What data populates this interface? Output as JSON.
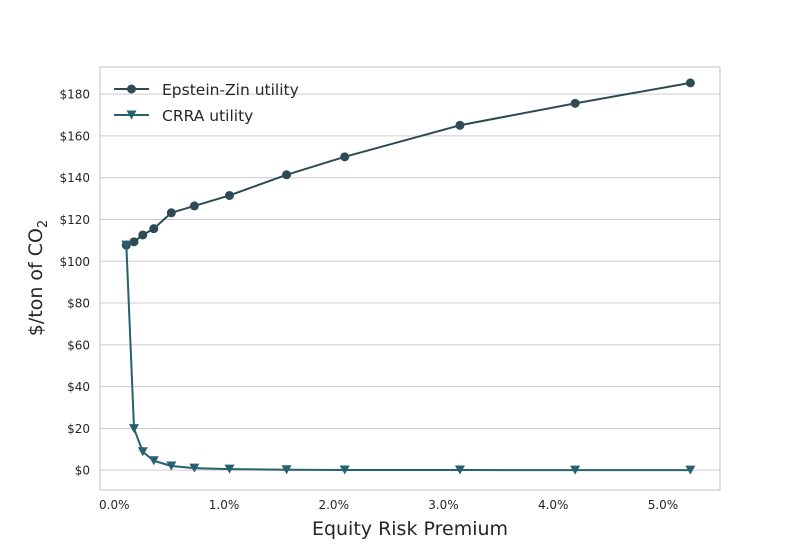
{
  "chart_data": {
    "type": "line",
    "xlabel": "Equity Risk Premium",
    "ylabel_main": "$/ton of CO",
    "ylabel_sub": "2",
    "xlim": [
      -0.0013,
      0.0552
    ],
    "ylim": [
      -9.5,
      193
    ],
    "xticks": [
      {
        "value": 0.0,
        "label": "0.0%"
      },
      {
        "value": 0.01,
        "label": "1.0%"
      },
      {
        "value": 0.02,
        "label": "2.0%"
      },
      {
        "value": 0.03,
        "label": "3.0%"
      },
      {
        "value": 0.04,
        "label": "4.0%"
      },
      {
        "value": 0.05,
        "label": "5.0%"
      }
    ],
    "yticks": [
      {
        "value": 0,
        "label": "$0"
      },
      {
        "value": 20,
        "label": "$20"
      },
      {
        "value": 40,
        "label": "$40"
      },
      {
        "value": 60,
        "label": "$60"
      },
      {
        "value": 80,
        "label": "$80"
      },
      {
        "value": 100,
        "label": "$100"
      },
      {
        "value": 120,
        "label": "$120"
      },
      {
        "value": 140,
        "label": "$140"
      },
      {
        "value": 160,
        "label": "$160"
      },
      {
        "value": 180,
        "label": "$180"
      }
    ],
    "grid": "horizontal",
    "legend_position": "top-left",
    "series": [
      {
        "name": "Epstein-Zin utility",
        "marker": "circle",
        "color": "#2e4a54",
        "points": [
          {
            "x": 0.0011,
            "y": 107.7
          },
          {
            "x": 0.0018,
            "y": 109.3
          },
          {
            "x": 0.0026,
            "y": 112.6
          },
          {
            "x": 0.0036,
            "y": 115.6
          },
          {
            "x": 0.0052,
            "y": 123.2
          },
          {
            "x": 0.0073,
            "y": 126.5
          },
          {
            "x": 0.0105,
            "y": 131.5
          },
          {
            "x": 0.0157,
            "y": 141.4
          },
          {
            "x": 0.021,
            "y": 150.0
          },
          {
            "x": 0.0315,
            "y": 165.1
          },
          {
            "x": 0.042,
            "y": 175.6
          },
          {
            "x": 0.0525,
            "y": 185.4
          }
        ]
      },
      {
        "name": "CRRA utility",
        "marker": "triangle-down",
        "color": "#25616e",
        "points": [
          {
            "x": 0.0011,
            "y": 107.7
          },
          {
            "x": 0.0018,
            "y": 19.9
          },
          {
            "x": 0.0026,
            "y": 8.8
          },
          {
            "x": 0.0036,
            "y": 4.5
          },
          {
            "x": 0.0052,
            "y": 2.0
          },
          {
            "x": 0.0073,
            "y": 1.0
          },
          {
            "x": 0.0105,
            "y": 0.5
          },
          {
            "x": 0.0157,
            "y": 0.2
          },
          {
            "x": 0.021,
            "y": 0.1
          },
          {
            "x": 0.0315,
            "y": 0.05
          },
          {
            "x": 0.042,
            "y": 0.03
          },
          {
            "x": 0.0525,
            "y": 0.02
          }
        ]
      }
    ]
  }
}
